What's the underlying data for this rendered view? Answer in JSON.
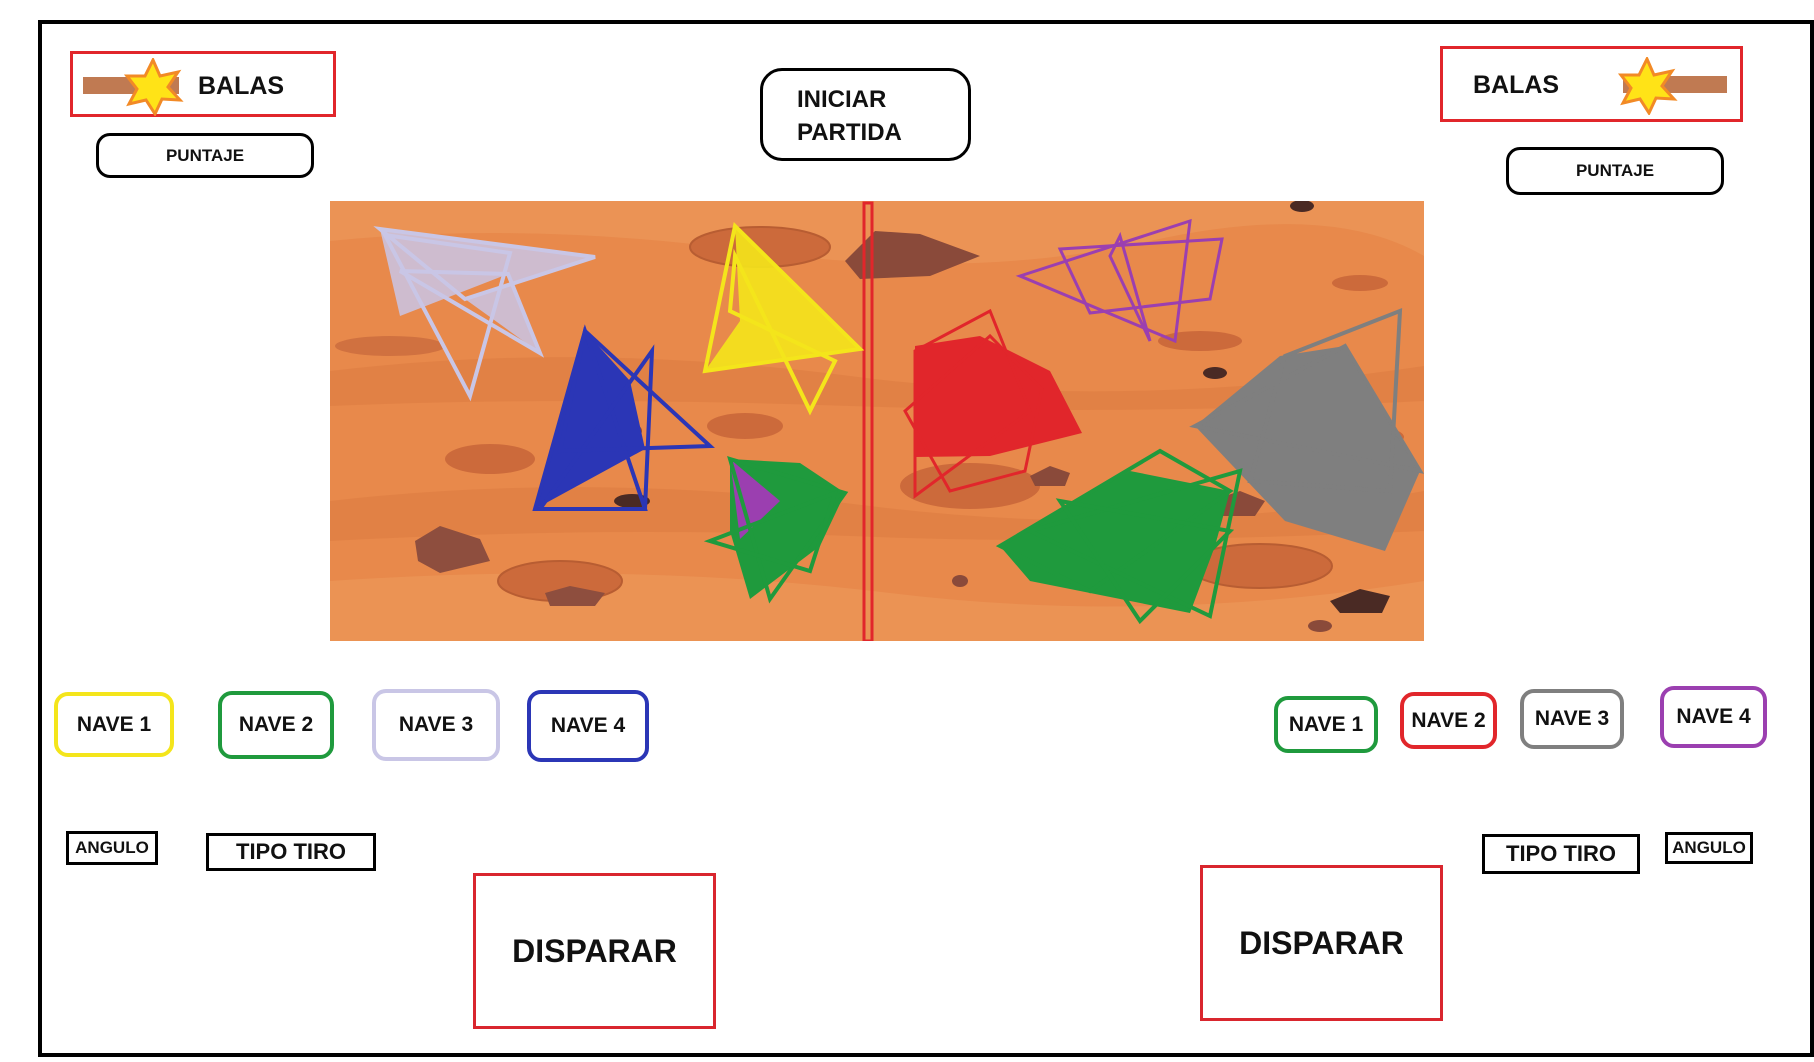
{
  "start_button": {
    "line1": "INICIAR",
    "line2": "PARTIDA"
  },
  "left_player": {
    "balas_label": "BALAS",
    "puntaje_label": "PUNTAJE",
    "naves": [
      {
        "label": "NAVE 1",
        "color": "#f4e51b"
      },
      {
        "label": "NAVE 2",
        "color": "#1f9a3d"
      },
      {
        "label": "NAVE 3",
        "color": "#c9c6e6"
      },
      {
        "label": "NAVE 4",
        "color": "#2b36b6"
      }
    ],
    "angulo_label": "ANGULO",
    "tipo_tiro_label": "TIPO TIRO",
    "disparar_label": "DISPARAR"
  },
  "right_player": {
    "balas_label": "BALAS",
    "puntaje_label": "PUNTAJE",
    "naves": [
      {
        "label": "NAVE 1",
        "color": "#1f9a3d"
      },
      {
        "label": "NAVE 2",
        "color": "#e1262b"
      },
      {
        "label": "NAVE 3",
        "color": "#7f7f7f"
      },
      {
        "label": "NAVE 4",
        "color": "#9b3fb0"
      }
    ],
    "angulo_label": "ANGULO",
    "tipo_tiro_label": "TIPO TIRO",
    "disparar_label": "DISPARAR"
  },
  "colors": {
    "terrain": "#e8894b",
    "divider": "#e1262b",
    "bullet_band": "#c07a52",
    "bullet_star": "#ffe317",
    "bullet_star_outline": "#f28a26"
  }
}
